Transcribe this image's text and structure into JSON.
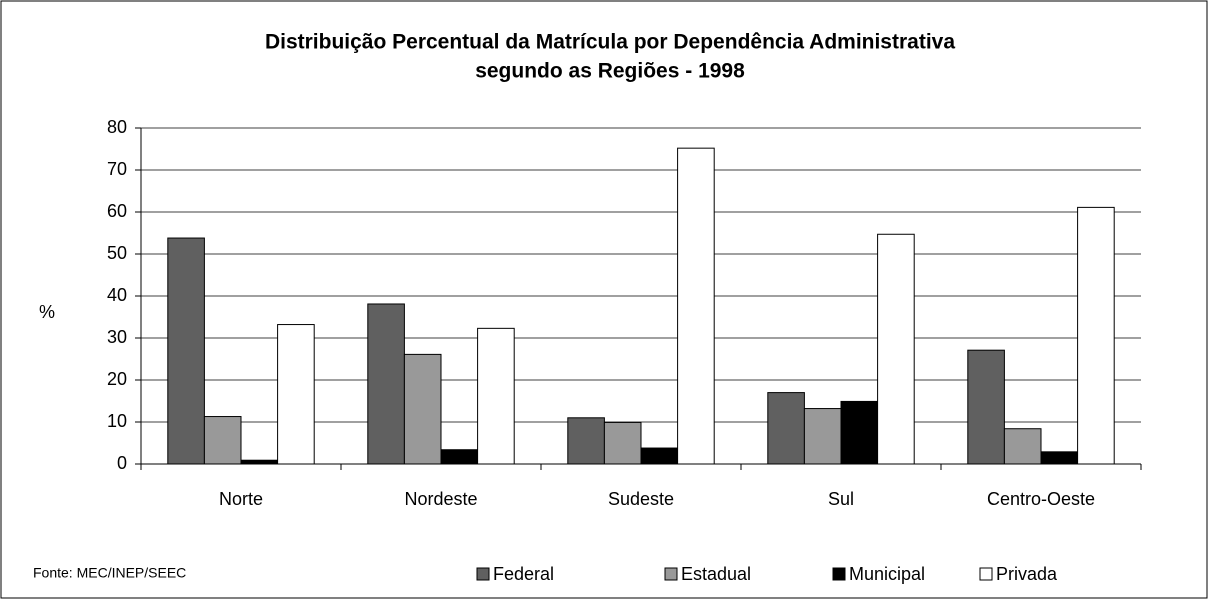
{
  "chart_data": {
    "type": "bar",
    "title": [
      "Distribuição Percentual da Matrícula por Dependência Administrativa",
      "segundo as Regiões - 1998"
    ],
    "y_label": "%",
    "source": "Fonte: MEC/INEP/SEEC",
    "categories": [
      "Norte",
      "Nordeste",
      "Sudeste",
      "Sul",
      "Centro-Oeste"
    ],
    "series": [
      {
        "name": "Federal",
        "color": "#606060",
        "values": [
          53.8,
          38.1,
          11.0,
          17.0,
          27.1
        ]
      },
      {
        "name": "Estadual",
        "color": "#999999",
        "values": [
          11.3,
          26.1,
          9.9,
          13.2,
          8.4
        ]
      },
      {
        "name": "Municipal",
        "color": "#000000",
        "values": [
          0.9,
          3.4,
          3.8,
          14.9,
          2.9
        ]
      },
      {
        "name": "Privada",
        "color": "#ffffff",
        "values": [
          33.2,
          32.3,
          75.2,
          54.7,
          61.1
        ]
      }
    ],
    "ylim": [
      0,
      80
    ],
    "yticks": [
      0,
      10,
      20,
      30,
      40,
      50,
      60,
      70,
      80
    ],
    "grid": true
  }
}
